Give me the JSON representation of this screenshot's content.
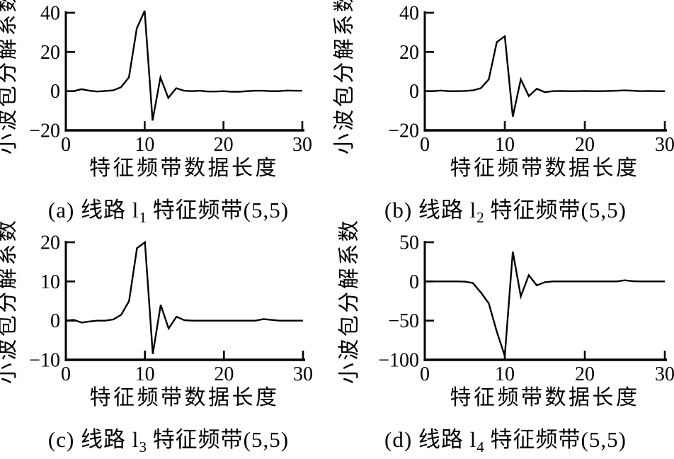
{
  "figure": {
    "background": "#ffffff",
    "line_color": "#000000",
    "grid": "off",
    "legend": "none"
  },
  "chart_data": [
    {
      "id": "a",
      "type": "line",
      "caption": {
        "pre": "(a) 线路 l",
        "sub": "1",
        "post": " 特征频带(5,5)"
      },
      "xlabel": "特征频带数据长度",
      "ylabel": "小波包分解系数",
      "xlim": [
        0,
        30
      ],
      "ylim": [
        -20,
        40
      ],
      "xticks": [
        "0",
        "10",
        "20",
        "30"
      ],
      "yticks": [
        "-20",
        "0",
        "20",
        "40"
      ],
      "x": [
        0,
        1,
        2,
        3,
        4,
        5,
        6,
        7,
        8,
        9,
        10,
        11,
        12,
        13,
        14,
        15,
        16,
        17,
        18,
        19,
        20,
        21,
        22,
        23,
        24,
        25,
        26,
        27,
        28,
        29,
        30
      ],
      "y": [
        0,
        0,
        1,
        0.2,
        -0.2,
        0.1,
        0.4,
        2,
        7,
        32,
        41,
        -15,
        7,
        -3.5,
        1.5,
        0.2,
        0,
        0.2,
        -0.2,
        -0.2,
        0,
        -0.3,
        -0.3,
        0,
        0.2,
        0.2,
        0,
        0,
        0.3,
        0.2,
        0.2
      ]
    },
    {
      "id": "b",
      "type": "line",
      "caption": {
        "pre": "(b) 线路 l",
        "sub": "2",
        "post": " 特征频带(5,5)"
      },
      "xlabel": "特征频带数据长度",
      "ylabel": "小波包分解系数",
      "xlim": [
        0,
        30
      ],
      "ylim": [
        -20,
        40
      ],
      "xticks": [
        "0",
        "10",
        "20",
        "30"
      ],
      "yticks": [
        "-20",
        "0",
        "20",
        "40"
      ],
      "x": [
        0,
        1,
        2,
        3,
        4,
        5,
        6,
        7,
        8,
        9,
        10,
        11,
        12,
        13,
        14,
        15,
        16,
        17,
        18,
        19,
        20,
        21,
        22,
        23,
        24,
        25,
        26,
        27,
        28,
        29,
        30
      ],
      "y": [
        0,
        0,
        0.3,
        0,
        0,
        0.1,
        0.4,
        1.5,
        6,
        25,
        28,
        -13,
        6,
        -2.5,
        1.2,
        -0.5,
        0,
        0.1,
        0,
        0,
        0.1,
        0,
        0,
        0.1,
        0.2,
        0.4,
        0.2,
        0,
        0.1,
        0,
        0
      ]
    },
    {
      "id": "c",
      "type": "line",
      "caption": {
        "pre": "(c) 线路 l",
        "sub": "3",
        "post": " 特征频带(5,5)"
      },
      "xlabel": "特征频带数据长度",
      "ylabel": "小波包分解系数",
      "xlim": [
        0,
        30
      ],
      "ylim": [
        -10,
        20
      ],
      "xticks": [
        "0",
        "10",
        "20",
        "30"
      ],
      "yticks": [
        "-10",
        "0",
        "10",
        "20"
      ],
      "x": [
        0,
        1,
        2,
        3,
        4,
        5,
        6,
        7,
        8,
        9,
        10,
        11,
        12,
        13,
        14,
        15,
        16,
        17,
        18,
        19,
        20,
        21,
        22,
        23,
        24,
        25,
        26,
        27,
        28,
        29,
        30
      ],
      "y": [
        0,
        0.2,
        -0.5,
        -0.2,
        0,
        0,
        0.3,
        1.5,
        5,
        18.5,
        20,
        -8.5,
        4,
        -2,
        1,
        0.1,
        0,
        0,
        0,
        0,
        0,
        0,
        0,
        0,
        0,
        0.4,
        0.2,
        0,
        0,
        0,
        0
      ]
    },
    {
      "id": "d",
      "type": "line",
      "caption": {
        "pre": "(d) 线路 l",
        "sub": "4",
        "post": " 特征频带(5,5)"
      },
      "xlabel": "特征频带数据长度",
      "ylabel": "小波包分解系数",
      "xlim": [
        0,
        30
      ],
      "ylim": [
        -100,
        50
      ],
      "xticks": [
        "0",
        "10",
        "20",
        "30"
      ],
      "yticks": [
        "-100",
        "-50",
        "0",
        "50"
      ],
      "x": [
        0,
        1,
        2,
        3,
        4,
        5,
        6,
        7,
        8,
        9,
        10,
        11,
        12,
        13,
        14,
        15,
        16,
        17,
        18,
        19,
        20,
        21,
        22,
        23,
        24,
        25,
        26,
        27,
        28,
        29,
        30
      ],
      "y": [
        0,
        0,
        0,
        0,
        0,
        -0.2,
        -2,
        -14,
        -28,
        -64,
        -95,
        38,
        -19,
        8,
        -5,
        -1,
        0,
        0,
        0,
        0,
        0,
        0,
        0,
        0,
        0,
        1.5,
        0.3,
        0,
        0,
        0,
        0
      ]
    }
  ]
}
